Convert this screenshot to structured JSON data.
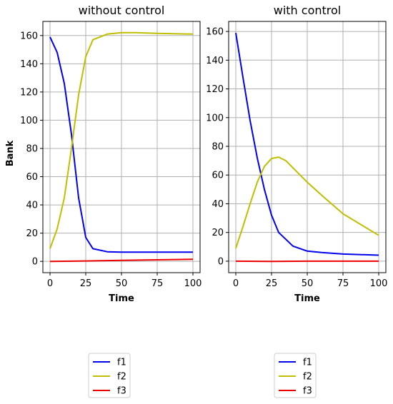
{
  "colors": {
    "f1": "#0000ee",
    "f2": "#bfbf00",
    "f3": "#ee0000",
    "grid": "#b0b0b0",
    "axis": "#000000"
  },
  "chart_data": [
    {
      "type": "line",
      "title": "without control",
      "xlabel": "Time",
      "ylabel": "Bank",
      "xlim": [
        -5,
        105
      ],
      "ylim": [
        -8,
        170
      ],
      "xticks": [
        0,
        25,
        50,
        75,
        100
      ],
      "yticks": [
        0,
        20,
        40,
        60,
        80,
        100,
        120,
        140,
        160
      ],
      "grid": true,
      "legend_position": "below",
      "series": [
        {
          "name": "f1",
          "x": [
            0,
            5,
            10,
            15,
            20,
            25,
            30,
            40,
            50,
            60,
            75,
            100
          ],
          "y": [
            159,
            148,
            126,
            90,
            45,
            17,
            9,
            6.8,
            6.5,
            6.5,
            6.5,
            6.5
          ]
        },
        {
          "name": "f2",
          "x": [
            0,
            5,
            10,
            15,
            20,
            25,
            30,
            40,
            50,
            60,
            75,
            100
          ],
          "y": [
            9,
            23,
            45,
            80,
            118,
            145,
            157,
            161,
            162,
            162,
            161.5,
            161
          ]
        },
        {
          "name": "f3",
          "x": [
            0,
            25,
            50,
            75,
            100
          ],
          "y": [
            0,
            0.3,
            0.7,
            1.1,
            1.5
          ]
        }
      ]
    },
    {
      "type": "line",
      "title": "with control",
      "xlabel": "Time",
      "ylabel": "",
      "xlim": [
        -5,
        105
      ],
      "ylim": [
        -8,
        167
      ],
      "xticks": [
        0,
        25,
        50,
        75,
        100
      ],
      "yticks": [
        0,
        20,
        40,
        60,
        80,
        100,
        120,
        140,
        160
      ],
      "grid": true,
      "legend_position": "below",
      "series": [
        {
          "name": "f1",
          "x": [
            0,
            5,
            10,
            15,
            20,
            25,
            30,
            40,
            50,
            60,
            75,
            100
          ],
          "y": [
            159,
            128,
            98,
            72,
            50,
            32,
            20,
            10.5,
            7,
            6,
            5,
            4.2
          ]
        },
        {
          "name": "f2",
          "x": [
            0,
            5,
            10,
            15,
            20,
            25,
            30,
            35,
            40,
            50,
            60,
            75,
            100
          ],
          "y": [
            9,
            24,
            40,
            55,
            66,
            71.5,
            72.5,
            70,
            65,
            55,
            46,
            33,
            18
          ]
        },
        {
          "name": "f3",
          "x": [
            0,
            25,
            50,
            75,
            100
          ],
          "y": [
            0,
            -0.2,
            0,
            0,
            0
          ]
        }
      ]
    }
  ]
}
